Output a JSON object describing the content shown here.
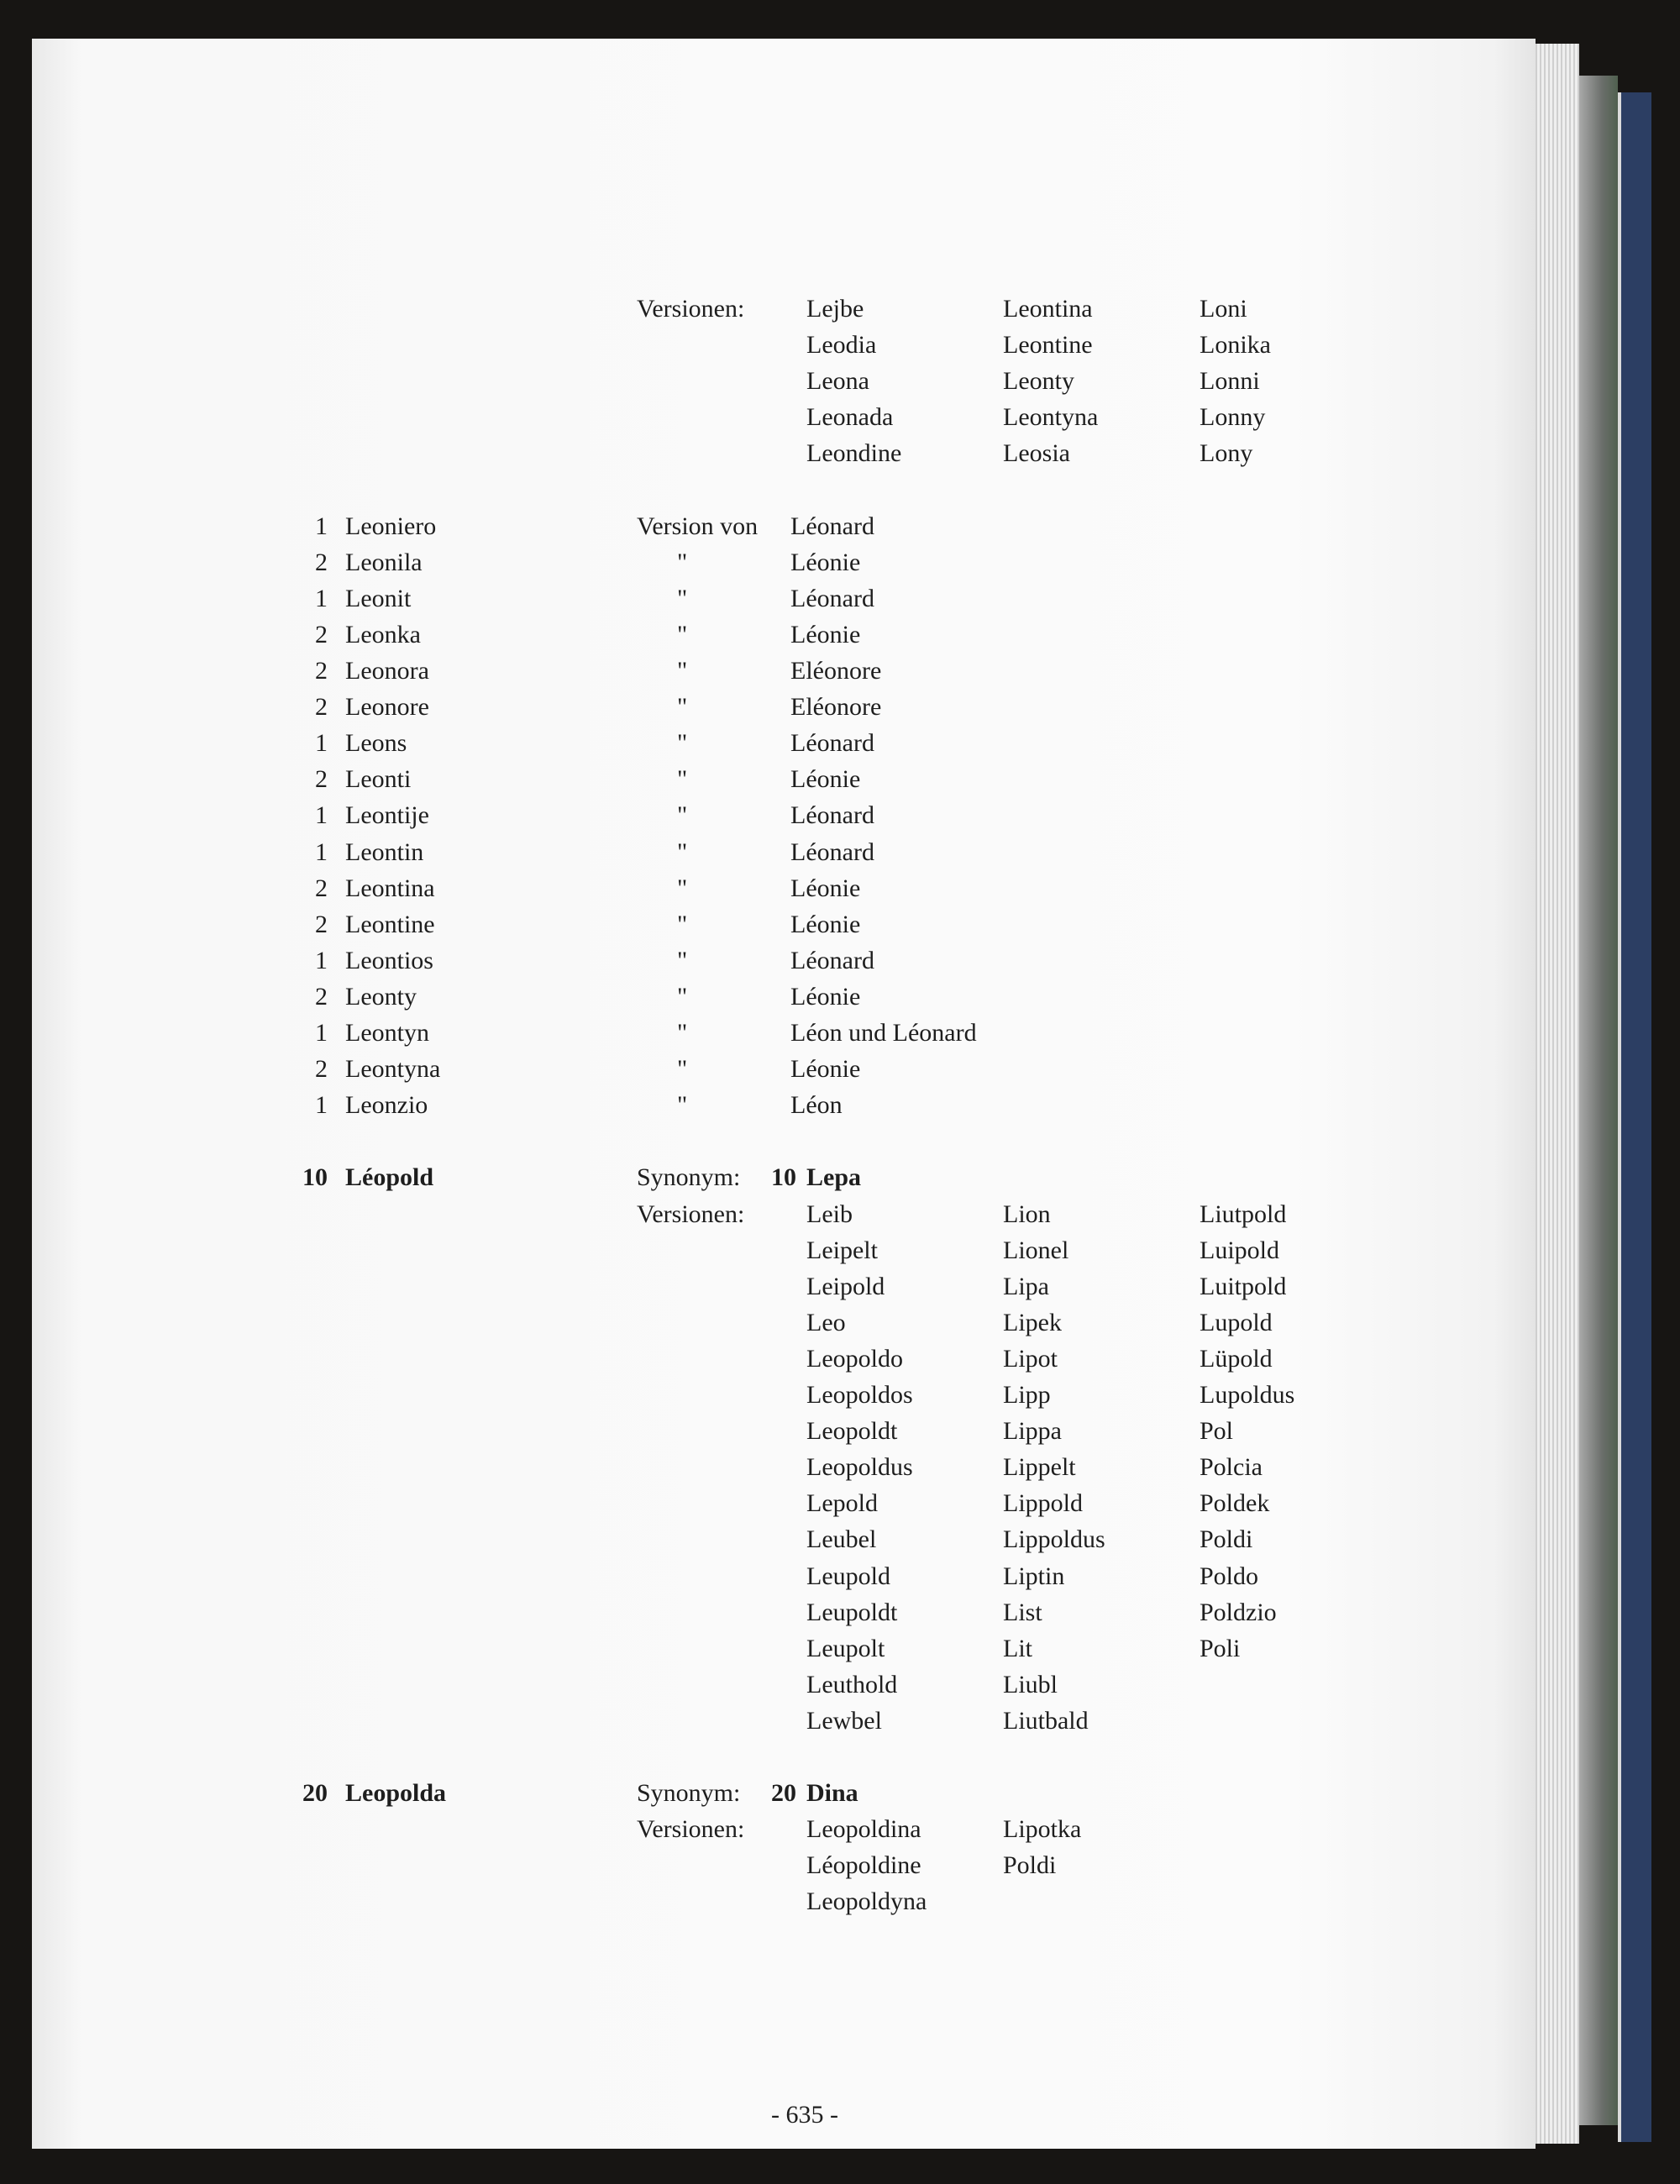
{
  "continuation": {
    "versions_label": "Versionen:",
    "versions": [
      [
        "Lejbe",
        "Leodia",
        "Leona",
        "Leonada",
        "Leondine"
      ],
      [
        "Leontina",
        "Leontine",
        "Leonty",
        "Leontyna",
        "Leosia"
      ],
      [
        "Loni",
        "Lonika",
        "Lonni",
        "Lonny",
        "Lony"
      ]
    ]
  },
  "list": {
    "first_relation": "Version von",
    "ditto": "\"",
    "entries": [
      {
        "num": "1",
        "name": "Leoniero",
        "ref": "Léonard"
      },
      {
        "num": "2",
        "name": "Leonila",
        "ref": "Léonie"
      },
      {
        "num": "1",
        "name": "Leonit",
        "ref": "Léonard"
      },
      {
        "num": "2",
        "name": "Leonka",
        "ref": "Léonie"
      },
      {
        "num": "2",
        "name": "Leonora",
        "ref": "Eléonore"
      },
      {
        "num": "2",
        "name": "Leonore",
        "ref": "Eléonore"
      },
      {
        "num": "1",
        "name": "Leons",
        "ref": "Léonard"
      },
      {
        "num": "2",
        "name": "Leonti",
        "ref": "Léonie"
      },
      {
        "num": "1",
        "name": "Leontije",
        "ref": "Léonard"
      },
      {
        "num": "1",
        "name": "Leontin",
        "ref": "Léonard"
      },
      {
        "num": "2",
        "name": "Leontina",
        "ref": "Léonie"
      },
      {
        "num": "2",
        "name": "Leontine",
        "ref": "Léonie"
      },
      {
        "num": "1",
        "name": "Leontios",
        "ref": "Léonard"
      },
      {
        "num": "2",
        "name": "Leonty",
        "ref": "Léonie"
      },
      {
        "num": "1",
        "name": "Leontyn",
        "ref": "Léon und Léonard"
      },
      {
        "num": "2",
        "name": "Leontyna",
        "ref": "Léonie"
      },
      {
        "num": "1",
        "name": "Leonzio",
        "ref": "Léon"
      }
    ]
  },
  "main_entries": [
    {
      "num": "10",
      "name": "Léopold",
      "synonym_label": "Synonym:",
      "synonym_num": "10",
      "synonym": "Lepa",
      "versions_label": "Versionen:",
      "versions": [
        [
          "Leib",
          "Leipelt",
          "Leipold",
          "Leo",
          "Leopoldo",
          "Leopoldos",
          "Leopoldt",
          "Leopoldus",
          "Lepold",
          "Leubel",
          "Leupold",
          "Leupoldt",
          "Leupolt",
          "Leuthold",
          "Lewbel"
        ],
        [
          "Lion",
          "Lionel",
          "Lipa",
          "Lipek",
          "Lipot",
          "Lipp",
          "Lippa",
          "Lippelt",
          "Lippold",
          "Lippoldus",
          "Liptin",
          "List",
          "Lit",
          "Liubl",
          "Liutbald"
        ],
        [
          "Liutpold",
          "Luipold",
          "Luitpold",
          "Lupold",
          "Lüpold",
          "Lupoldus",
          "Pol",
          "Polcia",
          "Poldek",
          "Poldi",
          "Poldo",
          "Poldzio",
          "Poli"
        ]
      ]
    },
    {
      "num": "20",
      "name": "Leopolda",
      "synonym_label": "Synonym:",
      "synonym_num": "20",
      "synonym": "Dina",
      "versions_label": "Versionen:",
      "versions": [
        [
          "Leopoldina",
          "Léopoldine",
          "Leopoldyna"
        ],
        [
          "Lipotka",
          "Poldi"
        ]
      ]
    }
  ],
  "page_number": "- 635 -"
}
